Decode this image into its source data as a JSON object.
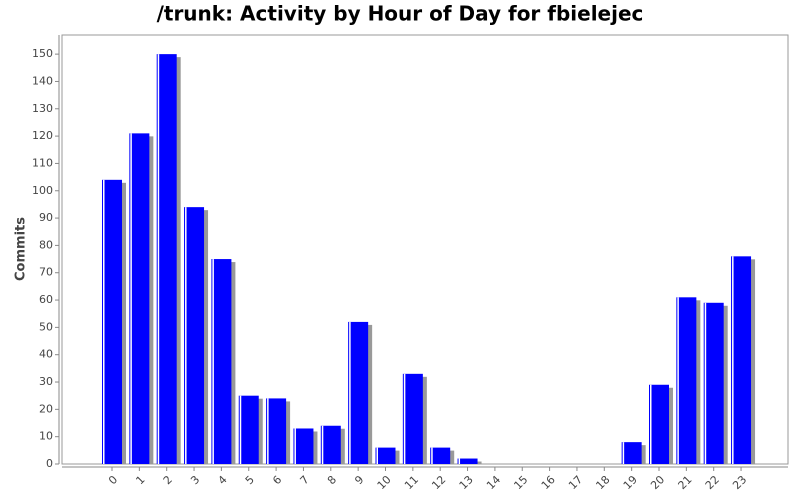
{
  "chart_data": {
    "type": "bar",
    "title": "/trunk: Activity by Hour of Day for fbielejec",
    "y_label": "Commits",
    "categories": [
      "0",
      "1",
      "2",
      "3",
      "4",
      "5",
      "6",
      "7",
      "8",
      "9",
      "10",
      "11",
      "12",
      "13",
      "14",
      "15",
      "16",
      "17",
      "18",
      "19",
      "20",
      "21",
      "22",
      "23"
    ],
    "values": [
      104,
      121,
      150,
      94,
      75,
      25,
      24,
      13,
      14,
      52,
      6,
      33,
      6,
      2,
      0,
      0,
      0,
      0,
      0,
      8,
      29,
      61,
      59,
      76
    ],
    "color": "#0000ff",
    "ylim": [
      0,
      157
    ],
    "yticks": [
      0,
      10,
      20,
      30,
      40,
      50,
      60,
      70,
      80,
      90,
      100,
      110,
      120,
      130,
      140,
      150
    ]
  }
}
